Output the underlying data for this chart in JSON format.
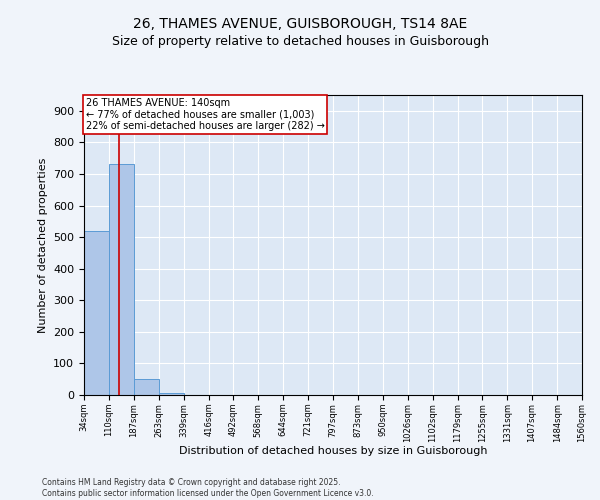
{
  "title1": "26, THAMES AVENUE, GUISBOROUGH, TS14 8AE",
  "title2": "Size of property relative to detached houses in Guisborough",
  "xlabel": "Distribution of detached houses by size in Guisborough",
  "ylabel": "Number of detached properties",
  "bin_edges": [
    34,
    110,
    187,
    263,
    339,
    416,
    492,
    568,
    644,
    721,
    797,
    873,
    950,
    1026,
    1102,
    1179,
    1255,
    1331,
    1407,
    1484,
    1560
  ],
  "bar_heights": [
    520,
    730,
    50,
    5,
    0,
    0,
    0,
    0,
    0,
    0,
    0,
    0,
    0,
    0,
    0,
    0,
    0,
    0,
    0,
    0
  ],
  "bar_color": "#aec6e8",
  "bar_edge_color": "#5b9bd5",
  "property_size": 140,
  "red_line_color": "#cc0000",
  "annotation_text": "26 THAMES AVENUE: 140sqm\n← 77% of detached houses are smaller (1,003)\n22% of semi-detached houses are larger (282) →",
  "annotation_box_color": "#ffffff",
  "annotation_box_edge_color": "#cc0000",
  "ylim": [
    0,
    950
  ],
  "yticks": [
    0,
    100,
    200,
    300,
    400,
    500,
    600,
    700,
    800,
    900
  ],
  "background_color": "#dde8f5",
  "grid_color": "#ffffff",
  "fig_background": "#f0f4fa",
  "footer_text": "Contains HM Land Registry data © Crown copyright and database right 2025.\nContains public sector information licensed under the Open Government Licence v3.0.",
  "title_fontsize": 10,
  "subtitle_fontsize": 9,
  "ylabel_fontsize": 8,
  "xlabel_fontsize": 8,
  "ytick_fontsize": 8,
  "xtick_fontsize": 6,
  "annotation_fontsize": 7,
  "footer_fontsize": 5.5
}
